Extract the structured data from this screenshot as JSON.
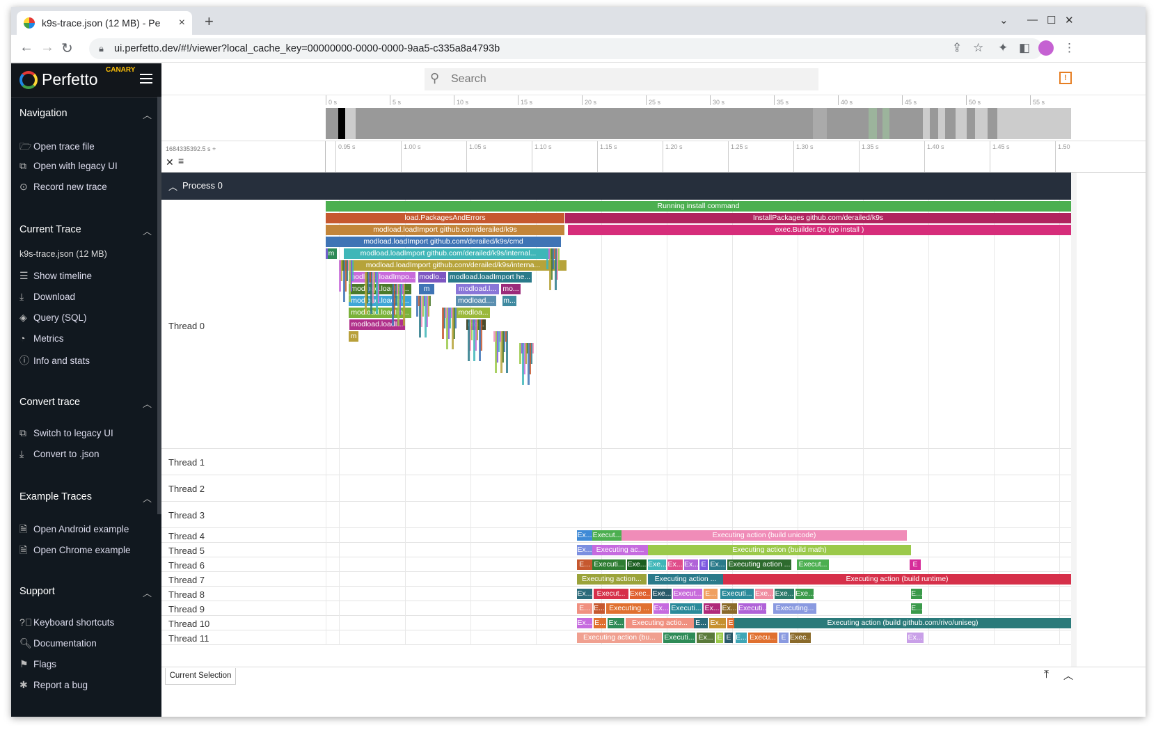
{
  "browser": {
    "tab_title": "k9s-trace.json (12 MB) - Pe",
    "tab_close": "×",
    "new_tab": "+",
    "url": "ui.perfetto.dev/#!/viewer?local_cache_key=00000000-0000-0000-9aa5-c335a8a4793b",
    "icons": [
      "back-icon",
      "forward-icon",
      "reload-icon",
      "lock-icon",
      "share-icon",
      "star-icon",
      "extensions-icon",
      "sidepanel-icon",
      "profile-icon",
      "menu-icon"
    ]
  },
  "app": {
    "name": "Perfetto",
    "badge": "CANARY"
  },
  "sidebar": {
    "sections": [
      {
        "title": "Navigation",
        "items": [
          "Open trace file",
          "Open with legacy UI",
          "Record new trace"
        ]
      },
      {
        "title": "Current Trace",
        "subtitle": "k9s-trace.json (12 MB)",
        "items": [
          "Show timeline",
          "Download",
          "Query (SQL)",
          "Metrics",
          "Info and stats"
        ]
      },
      {
        "title": "Convert trace",
        "items": [
          "Switch to legacy UI",
          "Convert to .json"
        ]
      },
      {
        "title": "Example Traces",
        "items": [
          "Open Android example",
          "Open Chrome example"
        ]
      },
      {
        "title": "Support",
        "items": [
          "Keyboard shortcuts",
          "Documentation",
          "Flags",
          "Report a bug"
        ]
      }
    ]
  },
  "search": {
    "placeholder": "Search"
  },
  "overview": {
    "ticks": [
      "0 s",
      "5 s",
      "10 s",
      "15 s",
      "20 s",
      "25 s",
      "30 s",
      "35 s",
      "40 s",
      "45 s",
      "50 s",
      "55 s"
    ]
  },
  "timeline": {
    "offset_label": "1684335392.5 s +",
    "ticks": [
      "0.95 s",
      "1.00 s",
      "1.05 s",
      "1.10 s",
      "1.15 s",
      "1.20 s",
      "1.25 s",
      "1.30 s",
      "1.35 s",
      "1.40 s",
      "1.45 s",
      "1.50"
    ]
  },
  "process": {
    "label": "Process 0"
  },
  "threads": [
    "Thread 0",
    "Thread 1",
    "Thread 2",
    "Thread 3",
    "Thread 4",
    "Thread 5",
    "Thread 6",
    "Thread 7",
    "Thread 8",
    "Thread 9",
    "Thread 10",
    "Thread 11"
  ],
  "thread0_slices": [
    {
      "text": "Running install command",
      "color": "#4caf50"
    },
    {
      "text": "load.PackagesAndErrors",
      "color": "#c6582f"
    },
    {
      "text": "InstallPackages github.com/derailed/k9s",
      "color": "#b0245e"
    },
    {
      "text": "modload.loadImport github.com/derailed/k9s",
      "color": "#c2853a"
    },
    {
      "text": "exec.Builder.Do (go install )",
      "color": "#d62d7a"
    },
    {
      "text": "modload.loadImport github.com/derailed/k9s/cmd",
      "color": "#3f74b5"
    },
    {
      "text": "m",
      "color": "#2e8b57"
    },
    {
      "text": "modload.loadImport github.com/derailed/k9s/internal...",
      "color": "#3fb6b8"
    },
    {
      "text": "modload.loadImport github.com/derailed/k9s/interna...",
      "color": "#b6a33a"
    },
    {
      "text": "modload.loadImpo...",
      "color": "#c86bdb"
    },
    {
      "text": "modlo...",
      "color": "#7e57c2"
    },
    {
      "text": "modload.loadImport he...",
      "color": "#2a7a8a"
    },
    {
      "text": "modload.loadIm...",
      "color": "#4b7a2b"
    },
    {
      "text": "m",
      "color": "#3f74b5"
    },
    {
      "text": "modload.l...",
      "color": "#8a76d8"
    },
    {
      "text": "mo...",
      "color": "#9b2b7a"
    },
    {
      "text": "modload.loadIm...",
      "color": "#3fa6d6"
    },
    {
      "text": "modload....",
      "color": "#5b8fb0"
    },
    {
      "text": "m...",
      "color": "#3f8aa0"
    },
    {
      "text": "modload.loadIm...",
      "color": "#7ab23a"
    },
    {
      "text": "modloa...",
      "color": "#9ab83a"
    },
    {
      "text": "modload.loadI...",
      "color": "#b0308a"
    },
    {
      "text": "mo...",
      "color": "#4a4a2a"
    },
    {
      "text": "m",
      "color": "#b8a03a"
    }
  ],
  "action_slices": [
    [
      {
        "text": "Ex...",
        "color": "#3f8ad6"
      },
      {
        "text": "Execut...",
        "color": "#4caf50"
      },
      {
        "text": "Executing action (build unicode)",
        "color": "#f08cb8"
      }
    ],
    [
      {
        "text": "Ex...",
        "color": "#7b8fe0"
      },
      {
        "text": "Executing ac...",
        "color": "#c66bdf"
      },
      {
        "text": "Executing action (build math)",
        "color": "#9bc94a"
      }
    ],
    [
      {
        "text": "E...",
        "color": "#c6582f"
      },
      {
        "text": "Executi...",
        "color": "#2e7d32"
      },
      {
        "text": "Exe...",
        "color": "#1b5e20"
      },
      {
        "text": "Exe...",
        "color": "#3fb6b8"
      },
      {
        "text": "Ex...",
        "color": "#e04d8a"
      },
      {
        "text": "Ex...",
        "color": "#b062d8"
      },
      {
        "text": "E",
        "color": "#7b57e0"
      },
      {
        "text": "Ex...",
        "color": "#2a7a8a"
      },
      {
        "text": "Executing action ...",
        "color": "#2e6b2e"
      },
      {
        "text": "Execut...",
        "color": "#4caf50"
      },
      {
        "text": "E",
        "color": "#d62d9a"
      }
    ],
    [
      {
        "text": "Executing action...",
        "color": "#9ba33a"
      },
      {
        "text": "Executing action ...",
        "color": "#2a7a8a"
      },
      {
        "text": "Executing action (build runtime)",
        "color": "#d6304a"
      }
    ],
    [
      {
        "text": "Ex...",
        "color": "#2a6a7a"
      },
      {
        "text": "Execut...",
        "color": "#d6304a"
      },
      {
        "text": "Exec...",
        "color": "#e0602f"
      },
      {
        "text": "Exe...",
        "color": "#2a5a6a"
      },
      {
        "text": "Execut...",
        "color": "#c86bdb"
      },
      {
        "text": "E...",
        "color": "#f0a060"
      },
      {
        "text": "Executi...",
        "color": "#2a8a9a"
      },
      {
        "text": "Exe...",
        "color": "#f08ca0"
      },
      {
        "text": "Exe...",
        "color": "#2a7a6a"
      },
      {
        "text": "Exe...",
        "color": "#3a9a4a"
      },
      {
        "text": "E...",
        "color": "#3a9a4a"
      }
    ],
    [
      {
        "text": "E...",
        "color": "#f09080"
      },
      {
        "text": "E...",
        "color": "#c6582f"
      },
      {
        "text": "Executing ...",
        "color": "#e0702f"
      },
      {
        "text": "Ex...",
        "color": "#c66bdf"
      },
      {
        "text": "Executi...",
        "color": "#2a8a9a"
      },
      {
        "text": "Ex...",
        "color": "#b02a7a"
      },
      {
        "text": "Ex...",
        "color": "#8a6a2a"
      },
      {
        "text": "Executi...",
        "color": "#b062d8"
      },
      {
        "text": "Executing...",
        "color": "#8a9ae0"
      },
      {
        "text": "E...",
        "color": "#3a9a4a"
      }
    ],
    [
      {
        "text": "Ex...",
        "color": "#c66bdf"
      },
      {
        "text": "E...",
        "color": "#e0702f"
      },
      {
        "text": "Ex...",
        "color": "#2e8b57"
      },
      {
        "text": "Executing actio...",
        "color": "#f09080"
      },
      {
        "text": "E...",
        "color": "#2a6a7a"
      },
      {
        "text": "Ex...",
        "color": "#c6902f"
      },
      {
        "text": "E",
        "color": "#e0702f"
      },
      {
        "text": "Executing action (build github.com/rivo/uniseg)",
        "color": "#2a7a7a"
      }
    ],
    [
      {
        "text": "Executing action (bu...",
        "color": "#f0a090"
      },
      {
        "text": "Executi...",
        "color": "#2e8b57"
      },
      {
        "text": "Ex...",
        "color": "#5a7a3a"
      },
      {
        "text": "E",
        "color": "#9bc94a"
      },
      {
        "text": "E",
        "color": "#2a5a6a"
      },
      {
        "text": "E...",
        "color": "#3fa6b6"
      },
      {
        "text": "Execu...",
        "color": "#e0702f"
      },
      {
        "text": "E",
        "color": "#8a9ae0"
      },
      {
        "text": "Exec...",
        "color": "#8a6a2a"
      },
      {
        "text": "Ex...",
        "color": "#c9a0e8"
      }
    ]
  ],
  "bottom": {
    "tab": "Current Selection"
  }
}
